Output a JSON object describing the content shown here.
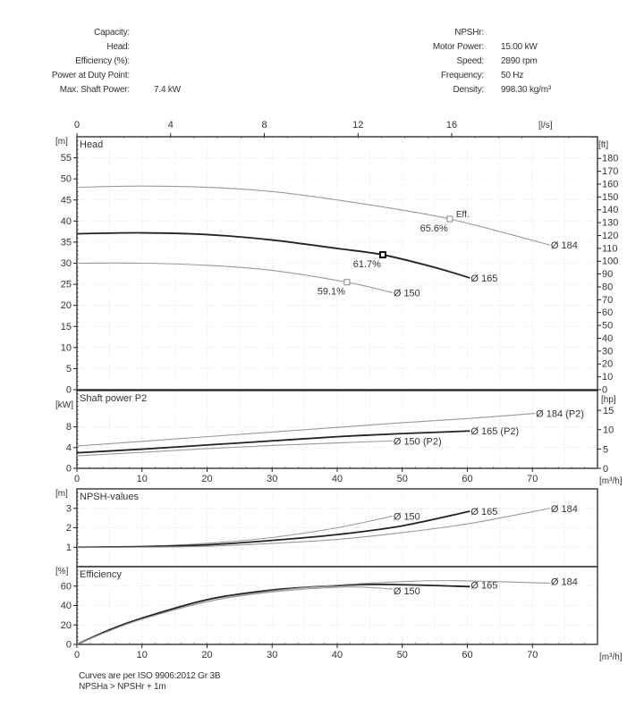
{
  "header": {
    "left": [
      {
        "label": "Capacity:",
        "value": ""
      },
      {
        "label": "Head:",
        "value": ""
      },
      {
        "label": "Efficiency (%):",
        "value": ""
      },
      {
        "label": "Power at Duty Point:",
        "value": ""
      },
      {
        "label": "Max. Shaft Power:",
        "value": "7.4 kW"
      }
    ],
    "right": [
      {
        "label": "NPSHr:",
        "value": ""
      },
      {
        "label": "Motor Power:",
        "value": "15.00 kW"
      },
      {
        "label": "Speed:",
        "value": "2890 rpm"
      },
      {
        "label": "Frequency:",
        "value": "50 Hz"
      },
      {
        "label": "Density:",
        "value": "998.30 kg/m³"
      }
    ]
  },
  "footer": {
    "line1": "Curves are per ISO 9906:2012 Gr 3B",
    "line2": "NPSHa > NPSHr + 1m"
  },
  "chart_data": [
    {
      "type": "line",
      "title": "Head",
      "ylabel": "[m]",
      "y2label": "[ft]",
      "xlabel_top": "[l/s]",
      "xlim": [
        0,
        80
      ],
      "ylim": [
        0,
        60
      ],
      "yticks": [
        0,
        5,
        10,
        15,
        20,
        25,
        30,
        35,
        40,
        45,
        50,
        55
      ],
      "y2ticks": [
        0,
        10,
        20,
        30,
        40,
        50,
        60,
        70,
        80,
        90,
        100,
        110,
        120,
        130,
        140,
        150,
        160,
        170,
        180
      ],
      "xticks_top_ls": [
        0,
        4,
        8,
        12,
        16
      ],
      "grid": true,
      "series": [
        {
          "name": "Ø 184",
          "highlight": false,
          "points": [
            [
              0,
              48
            ],
            [
              10,
              48.3
            ],
            [
              20,
              48
            ],
            [
              30,
              47
            ],
            [
              40,
              45
            ],
            [
              50,
              42.6
            ],
            [
              57.3,
              40.5
            ],
            [
              65,
              37.5
            ],
            [
              72.7,
              34.3
            ]
          ]
        },
        {
          "name": "Ø 165",
          "highlight": true,
          "points": [
            [
              0,
              37
            ],
            [
              10,
              37.2
            ],
            [
              20,
              36.8
            ],
            [
              30,
              35.5
            ],
            [
              40,
              33.5
            ],
            [
              47,
              32
            ],
            [
              55,
              29
            ],
            [
              60.4,
              26.5
            ]
          ]
        },
        {
          "name": "Ø 150",
          "highlight": false,
          "points": [
            [
              0,
              30
            ],
            [
              10,
              30
            ],
            [
              20,
              29.5
            ],
            [
              30,
              28.3
            ],
            [
              41.5,
              25.5
            ],
            [
              48.5,
              23
            ]
          ]
        }
      ],
      "annotations": [
        {
          "x": 57.3,
          "y": 40.5,
          "text": "65.6%",
          "extra": "Eff."
        },
        {
          "x": 47,
          "y": 32,
          "text": "61.7%",
          "bold": true
        },
        {
          "x": 41.5,
          "y": 25.5,
          "text": "59.1%"
        }
      ]
    },
    {
      "type": "line",
      "title": "Shaft power P2",
      "ylabel": "[kW]",
      "y2label": "[hp]",
      "xlabel": "[m³/h]",
      "xlim": [
        0,
        80
      ],
      "ylim": [
        0,
        15
      ],
      "yticks": [
        0,
        4,
        8
      ],
      "y2ticks_hp": [
        0,
        5,
        10,
        15
      ],
      "xticks": [
        0,
        10,
        20,
        30,
        40,
        50,
        60,
        70
      ],
      "grid": true,
      "series": [
        {
          "name": "Ø 184 (P2)",
          "highlight": false,
          "points": [
            [
              0,
              4.3
            ],
            [
              10,
              5.2
            ],
            [
              20,
              6.1
            ],
            [
              30,
              7.0
            ],
            [
              40,
              7.9
            ],
            [
              50,
              8.8
            ],
            [
              60,
              9.6
            ],
            [
              70.4,
              10.6
            ]
          ]
        },
        {
          "name": "Ø 165 (P2)",
          "highlight": true,
          "points": [
            [
              0,
              3.0
            ],
            [
              10,
              3.7
            ],
            [
              20,
              4.5
            ],
            [
              30,
              5.3
            ],
            [
              40,
              6.1
            ],
            [
              50,
              6.7
            ],
            [
              60.4,
              7.2
            ]
          ]
        },
        {
          "name": "Ø 150 (P2)",
          "highlight": false,
          "points": [
            [
              0,
              2.4
            ],
            [
              10,
              3.1
            ],
            [
              20,
              3.8
            ],
            [
              30,
              4.4
            ],
            [
              40,
              4.9
            ],
            [
              48.5,
              5.3
            ]
          ]
        }
      ]
    },
    {
      "type": "line",
      "title": "NPSH-values",
      "ylabel": "[m]",
      "xlim": [
        0,
        80
      ],
      "ylim": [
        0,
        4
      ],
      "yticks": [
        1,
        2,
        3
      ],
      "grid": true,
      "series": [
        {
          "name": "Ø 150",
          "highlight": false,
          "points": [
            [
              0,
              1
            ],
            [
              10,
              1.05
            ],
            [
              20,
              1.2
            ],
            [
              30,
              1.5
            ],
            [
              40,
              2.0
            ],
            [
              48.5,
              2.6
            ]
          ]
        },
        {
          "name": "Ø 165",
          "highlight": true,
          "points": [
            [
              0,
              1
            ],
            [
              10,
              1.03
            ],
            [
              20,
              1.12
            ],
            [
              30,
              1.35
            ],
            [
              40,
              1.65
            ],
            [
              50,
              2.1
            ],
            [
              60.4,
              2.85
            ]
          ]
        },
        {
          "name": "Ø 184",
          "highlight": false,
          "points": [
            [
              0,
              1
            ],
            [
              10,
              1.0
            ],
            [
              20,
              1.05
            ],
            [
              30,
              1.2
            ],
            [
              40,
              1.4
            ],
            [
              50,
              1.75
            ],
            [
              60,
              2.2
            ],
            [
              72.7,
              3.0
            ]
          ]
        }
      ]
    },
    {
      "type": "line",
      "title": "Efficiency",
      "ylabel": "[%]",
      "xlabel": "[m³/h]",
      "xlim": [
        0,
        80
      ],
      "ylim": [
        0,
        80
      ],
      "yticks": [
        0,
        20,
        40,
        60
      ],
      "xticks": [
        0,
        10,
        20,
        30,
        40,
        50,
        60,
        70
      ],
      "grid": true,
      "series": [
        {
          "name": "Ø 150",
          "highlight": false,
          "points": [
            [
              0,
              0
            ],
            [
              5,
              14
            ],
            [
              10,
              26
            ],
            [
              20,
              44
            ],
            [
              30,
              54
            ],
            [
              41.5,
              59.1
            ],
            [
              48.5,
              57
            ]
          ]
        },
        {
          "name": "Ø 165",
          "highlight": true,
          "points": [
            [
              0,
              0
            ],
            [
              5,
              15
            ],
            [
              10,
              27
            ],
            [
              20,
              46
            ],
            [
              30,
              56
            ],
            [
              40,
              60.5
            ],
            [
              47,
              61.7
            ],
            [
              60.4,
              59.5
            ]
          ]
        },
        {
          "name": "Ø 184",
          "highlight": false,
          "points": [
            [
              0,
              0
            ],
            [
              5,
              14
            ],
            [
              10,
              26
            ],
            [
              20,
              44
            ],
            [
              30,
              55
            ],
            [
              40,
              61
            ],
            [
              50,
              64.5
            ],
            [
              57.3,
              65.6
            ],
            [
              72.7,
              63
            ]
          ]
        }
      ]
    }
  ]
}
